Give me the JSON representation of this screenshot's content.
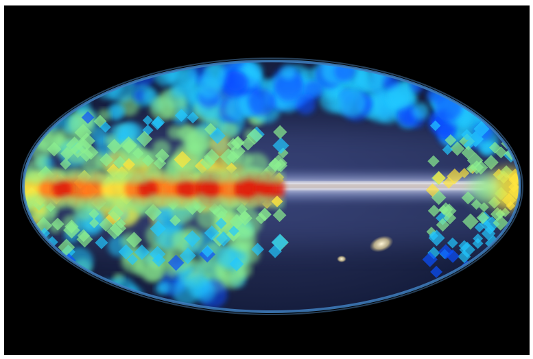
{
  "image": {
    "subject": "all-sky-map",
    "projection": "mollweide-ellipse",
    "background_color": "#000000",
    "page_background_color": "#ffffff",
    "colors": {
      "sky_base": "#1c2447",
      "sky_rim": "#3f7fbf",
      "milky_way_band": "#e8ecff",
      "low_intensity": "#0a3cff",
      "mid_intensity": "#22c8ff",
      "high_intensity": "#ffd23a",
      "peak_intensity": "#ff3b12"
    },
    "overlay_colormap": [
      "#0000d0",
      "#0a50ff",
      "#22c8ff",
      "#8cf090",
      "#ffe63c",
      "#ff7a1e",
      "#e0200a"
    ]
  }
}
